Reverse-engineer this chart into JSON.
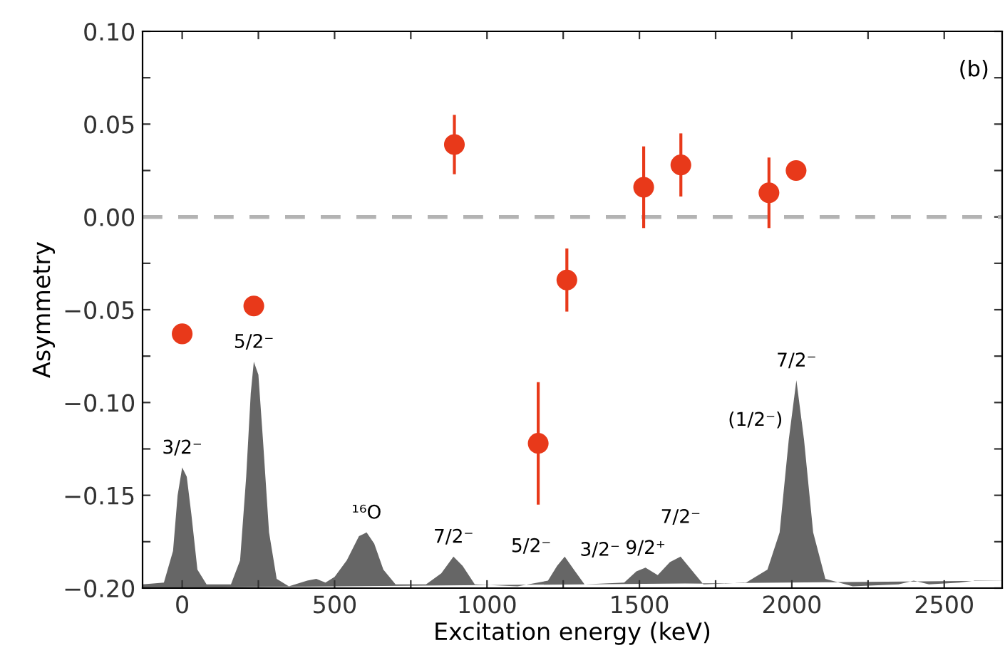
{
  "chart_data": {
    "type": "scatter",
    "xlabel": "Excitation energy (keV)",
    "ylabel": "Asymmetry",
    "xlim": [
      -130,
      2690
    ],
    "ylim": [
      -0.2,
      0.1
    ],
    "xticks": [
      0,
      {
        "value": 250,
        "label": null
      },
      500,
      {
        "value": 750,
        "label": null
      },
      1000,
      {
        "value": 1250,
        "label": null
      },
      1500,
      {
        "value": 1750,
        "label": null
      },
      2000,
      {
        "value": 2250,
        "label": null
      },
      2500
    ],
    "yticks": [
      {
        "value": -0.2,
        "label": "−0.20"
      },
      {
        "value": -0.175,
        "label": null
      },
      {
        "value": -0.15,
        "label": "−0.15"
      },
      {
        "value": -0.125,
        "label": null
      },
      {
        "value": -0.1,
        "label": "−0.10"
      },
      {
        "value": -0.075,
        "label": null
      },
      {
        "value": -0.05,
        "label": "−0.05"
      },
      {
        "value": -0.025,
        "label": null
      },
      {
        "value": 0,
        "label": "0.00"
      },
      {
        "value": 0.025,
        "label": null
      },
      {
        "value": 0.05,
        "label": "0.05"
      },
      {
        "value": 0.075,
        "label": null
      },
      {
        "value": 0.1,
        "label": "0.10"
      }
    ],
    "grid": false,
    "ref_lines": [
      {
        "axis": "y",
        "value": 0,
        "color": "#b3b3b3",
        "line_style": "dashed"
      }
    ],
    "series": [
      {
        "type": "area",
        "color": "#666666",
        "x": [
          -130,
          -60,
          -30,
          -15,
          0,
          15,
          30,
          50,
          80,
          160,
          190,
          210,
          225,
          235,
          250,
          265,
          285,
          310,
          350,
          410,
          440,
          470,
          500,
          540,
          580,
          605,
          630,
          660,
          700,
          800,
          850,
          890,
          920,
          960,
          1100,
          1200,
          1230,
          1255,
          1285,
          1320,
          1450,
          1490,
          1520,
          1560,
          1600,
          1635,
          1670,
          1710,
          1850,
          1920,
          1960,
          1990,
          2015,
          2040,
          2070,
          2110,
          2200,
          2350,
          2400,
          2450,
          2550,
          2600,
          2690
        ],
        "values": [
          -0.198,
          -0.197,
          -0.18,
          -0.15,
          -0.135,
          -0.14,
          -0.16,
          -0.19,
          -0.198,
          -0.198,
          -0.185,
          -0.14,
          -0.095,
          -0.078,
          -0.085,
          -0.12,
          -0.17,
          -0.195,
          -0.199,
          -0.196,
          -0.195,
          -0.197,
          -0.194,
          -0.185,
          -0.172,
          -0.17,
          -0.176,
          -0.19,
          -0.198,
          -0.198,
          -0.192,
          -0.183,
          -0.188,
          -0.198,
          -0.199,
          -0.196,
          -0.188,
          -0.183,
          -0.19,
          -0.198,
          -0.197,
          -0.191,
          -0.189,
          -0.193,
          -0.186,
          -0.183,
          -0.19,
          -0.198,
          -0.197,
          -0.19,
          -0.17,
          -0.12,
          -0.088,
          -0.12,
          -0.17,
          -0.195,
          -0.199,
          -0.198,
          -0.196,
          -0.198,
          -0.197,
          -0.196,
          -0.196
        ]
      },
      {
        "color": "#e8391a",
        "marker": "circle",
        "x": [
          0,
          235,
          893,
          1168,
          1262,
          1514,
          1636,
          1925,
          2014
        ],
        "values": [
          -0.063,
          -0.048,
          0.039,
          -0.122,
          -0.034,
          0.016,
          0.028,
          0.013,
          0.025
        ],
        "errors": [
          null,
          null,
          0.016,
          0.033,
          0.017,
          0.022,
          0.017,
          0.019,
          null
        ]
      }
    ],
    "annotations": [
      "(b)",
      {
        "text": "3/2⁻",
        "x": 0,
        "y": -0.135
      },
      {
        "text": "5/2⁻",
        "x": 235,
        "y": -0.078
      },
      {
        "text": "¹⁶O",
        "x": 605,
        "y": -0.17
      },
      {
        "text": "7/2⁻",
        "x": 890,
        "y": -0.183
      },
      {
        "text": "5/2⁻",
        "x": 1230,
        "y": -0.188
      },
      {
        "text": "3/2⁻",
        "x": 1285,
        "y": -0.19
      },
      {
        "text": "9/2⁺",
        "x": 1520,
        "y": -0.189
      },
      {
        "text": "7/2⁻",
        "x": 1635,
        "y": -0.183
      },
      {
        "text": "(1/2⁻)",
        "x": 1990,
        "y": -0.12
      },
      {
        "text": "7/2⁻",
        "x": 2015,
        "y": -0.088
      }
    ]
  }
}
